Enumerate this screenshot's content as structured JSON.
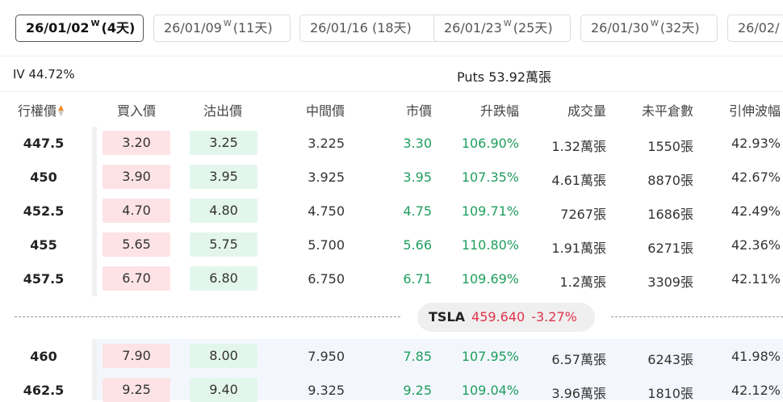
{
  "expiry_tabs": [
    {
      "date": "26/01/02",
      "week_mark": "W",
      "days": "(4天)",
      "active": true
    },
    {
      "date": "26/01/09",
      "week_mark": "W",
      "days": "(11天)",
      "active": false
    },
    {
      "date": "26/01/16",
      "week_mark": "",
      "days": "(18天)",
      "active": false
    },
    {
      "date": "26/01/23",
      "week_mark": "W",
      "days": "(25天)",
      "active": false
    },
    {
      "date": "26/01/30",
      "week_mark": "W",
      "days": "(32天)",
      "active": false
    },
    {
      "date": "26/02/",
      "week_mark": "",
      "days": "",
      "active": false
    }
  ],
  "summary": {
    "iv": "IV 44.72%",
    "puts": "Puts 53.92萬張"
  },
  "columns": {
    "strike": "行權價",
    "bid": "買入價",
    "ask": "沽出價",
    "mid": "中間價",
    "market": "市價",
    "change": "升跌幅",
    "volume": "成交量",
    "open_interest": "未平倉數",
    "implied_vol": "引伸波幅"
  },
  "rows_above": [
    {
      "strike": "447.5",
      "bid": "3.20",
      "ask": "3.25",
      "mid": "3.225",
      "market": "3.30",
      "change": "106.90%",
      "volume": "1.32萬張",
      "open_interest": "1550張",
      "implied_vol": "42.93%"
    },
    {
      "strike": "450",
      "bid": "3.90",
      "ask": "3.95",
      "mid": "3.925",
      "market": "3.95",
      "change": "107.35%",
      "volume": "4.61萬張",
      "open_interest": "8870張",
      "implied_vol": "42.67%"
    },
    {
      "strike": "452.5",
      "bid": "4.70",
      "ask": "4.80",
      "mid": "4.750",
      "market": "4.75",
      "change": "109.71%",
      "volume": "7267張",
      "open_interest": "1686張",
      "implied_vol": "42.49%"
    },
    {
      "strike": "455",
      "bid": "5.65",
      "ask": "5.75",
      "mid": "5.700",
      "market": "5.66",
      "change": "110.80%",
      "volume": "1.91萬張",
      "open_interest": "6271張",
      "implied_vol": "42.36%"
    },
    {
      "strike": "457.5",
      "bid": "6.70",
      "ask": "6.80",
      "mid": "6.750",
      "market": "6.71",
      "change": "109.69%",
      "volume": "1.2萬張",
      "open_interest": "3309張",
      "implied_vol": "42.11%"
    }
  ],
  "underlying": {
    "symbol": "TSLA",
    "price": "459.640",
    "change_pct": "-3.27%"
  },
  "rows_below": [
    {
      "strike": "460",
      "bid": "7.90",
      "ask": "8.00",
      "mid": "7.950",
      "market": "7.85",
      "change": "107.95%",
      "volume": "6.57萬張",
      "open_interest": "6243張",
      "implied_vol": "41.98%"
    },
    {
      "strike": "462.5",
      "bid": "9.25",
      "ask": "9.40",
      "mid": "9.325",
      "market": "9.25",
      "change": "109.04%",
      "volume": "3.96萬張",
      "open_interest": "1810張",
      "implied_vol": "42.12%"
    }
  ],
  "colors": {
    "bid_bg": "#fde3e5",
    "ask_bg": "#e3f6ec",
    "positive": "#1f9e5e",
    "negative": "#e0334a",
    "sort_active": "#f08a24",
    "itm_row_bg": "#f3f7fd"
  },
  "icons": {
    "sort": "sort-updown-icon"
  }
}
